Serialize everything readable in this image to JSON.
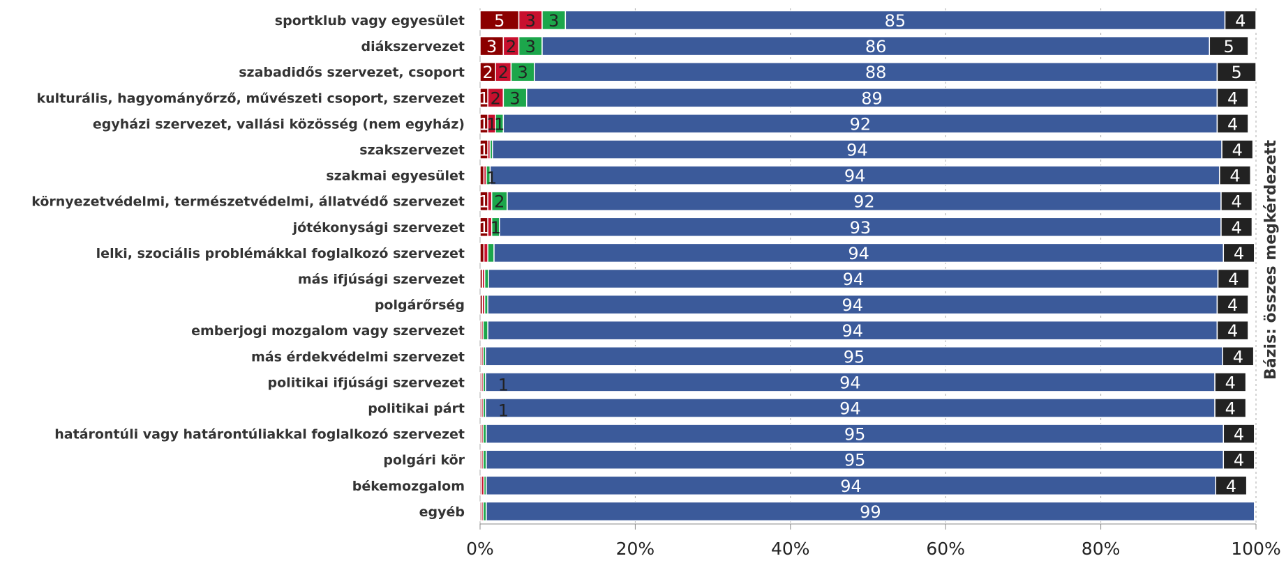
{
  "chart_data": {
    "type": "bar",
    "orientation": "horizontal",
    "stacked": "percent",
    "title": "",
    "side_note": "Bázis: összes megkérdezett",
    "categories": [
      "sportklub vagy egyesület",
      "diákszervezet",
      "szabadidős szervezet, csoport",
      "kulturális, hagyományőrző, művészeti csoport, szervezet",
      "egyházi szervezet, vallási közösség (nem egyház)",
      "szakszervezet",
      "szakmai egyesület",
      "környezetvédelmi, természetvédelmi, állatvédő szervezet",
      "jótékonysági szervezet",
      "lelki, szociális problémákkal foglalkozó szervezet",
      "más ifjúsági szervezet",
      "polgárőrség",
      "emberjogi mozgalom vagy szervezet",
      "más érdekvédelmi szervezet",
      "politikai ifjúsági szervezet",
      "politikai párt",
      "határontúli vagy határontúliakkal foglalkozó szervezet",
      "polgári kör",
      "békemozgalom",
      "egyéb"
    ],
    "series": [
      {
        "color": "#8b0000",
        "values": [
          5,
          3,
          2,
          1,
          1,
          1,
          0.5,
          1,
          1,
          0.5,
          0.3,
          0.3,
          0.2,
          0.2,
          0.2,
          0.2,
          0.2,
          0.2,
          0.2,
          0.2
        ],
        "labels": [
          "5",
          "3",
          "2",
          "1",
          "1",
          "1",
          "",
          "1",
          "1",
          "",
          "",
          "",
          "",
          "",
          "",
          "",
          "",
          "",
          "",
          ""
        ]
      },
      {
        "color": "#c8102e",
        "values": [
          3,
          2,
          2,
          2,
          1,
          0.3,
          0.3,
          0.5,
          0.5,
          0.5,
          0.3,
          0.3,
          0.2,
          0.2,
          0.2,
          0.2,
          0.2,
          0.2,
          0.3,
          0.2
        ],
        "labels": [
          "3",
          "2",
          "2",
          "2",
          "1",
          "",
          "",
          "",
          "",
          "",
          "",
          "",
          "",
          "",
          "",
          "",
          "",
          "",
          "",
          ""
        ]
      },
      {
        "color": "#1ca64b",
        "values": [
          3,
          3,
          3,
          3,
          1,
          0.3,
          0.5,
          2,
          1,
          0.8,
          0.5,
          0.4,
          0.6,
          0.3,
          0.3,
          0.3,
          0.4,
          0.4,
          0.3,
          0.4
        ],
        "labels": [
          "3",
          "3",
          "3",
          "3",
          "1",
          "",
          "",
          "2",
          "1",
          "",
          "",
          "",
          "",
          "",
          "",
          "",
          "",
          "",
          "",
          ""
        ]
      },
      {
        "color": "#3b5a9a",
        "values": [
          85,
          86,
          88,
          89,
          92,
          94,
          94,
          92,
          93,
          94,
          94,
          94,
          94,
          95,
          94,
          94,
          95,
          95,
          94,
          99
        ],
        "labels": [
          "85",
          "86",
          "88",
          "89",
          "92",
          "94",
          "94",
          "92",
          "93",
          "94",
          "94",
          "94",
          "94",
          "95",
          "94",
          "94",
          "95",
          "95",
          "94",
          "99"
        ]
      },
      {
        "color": "#222222",
        "values": [
          4,
          5,
          5,
          4,
          4,
          4,
          4,
          4,
          4,
          4,
          4,
          4,
          4,
          4,
          4,
          4,
          4,
          4,
          4,
          0
        ],
        "labels": [
          "4",
          "5",
          "5",
          "4",
          "4",
          "4",
          "4",
          "4",
          "4",
          "4",
          "4",
          "4",
          "4",
          "4",
          "4",
          "4",
          "4",
          "4",
          "4",
          ""
        ]
      }
    ],
    "outside_labels": [
      {
        "category_index": 6,
        "text": "1"
      },
      {
        "category_index": 14,
        "text": "1"
      },
      {
        "category_index": 15,
        "text": "1"
      }
    ],
    "x_ticks": [
      "0%",
      "20%",
      "40%",
      "60%",
      "80%",
      "100%"
    ],
    "xlim": [
      0,
      100
    ],
    "grid": true,
    "legend": "none"
  }
}
